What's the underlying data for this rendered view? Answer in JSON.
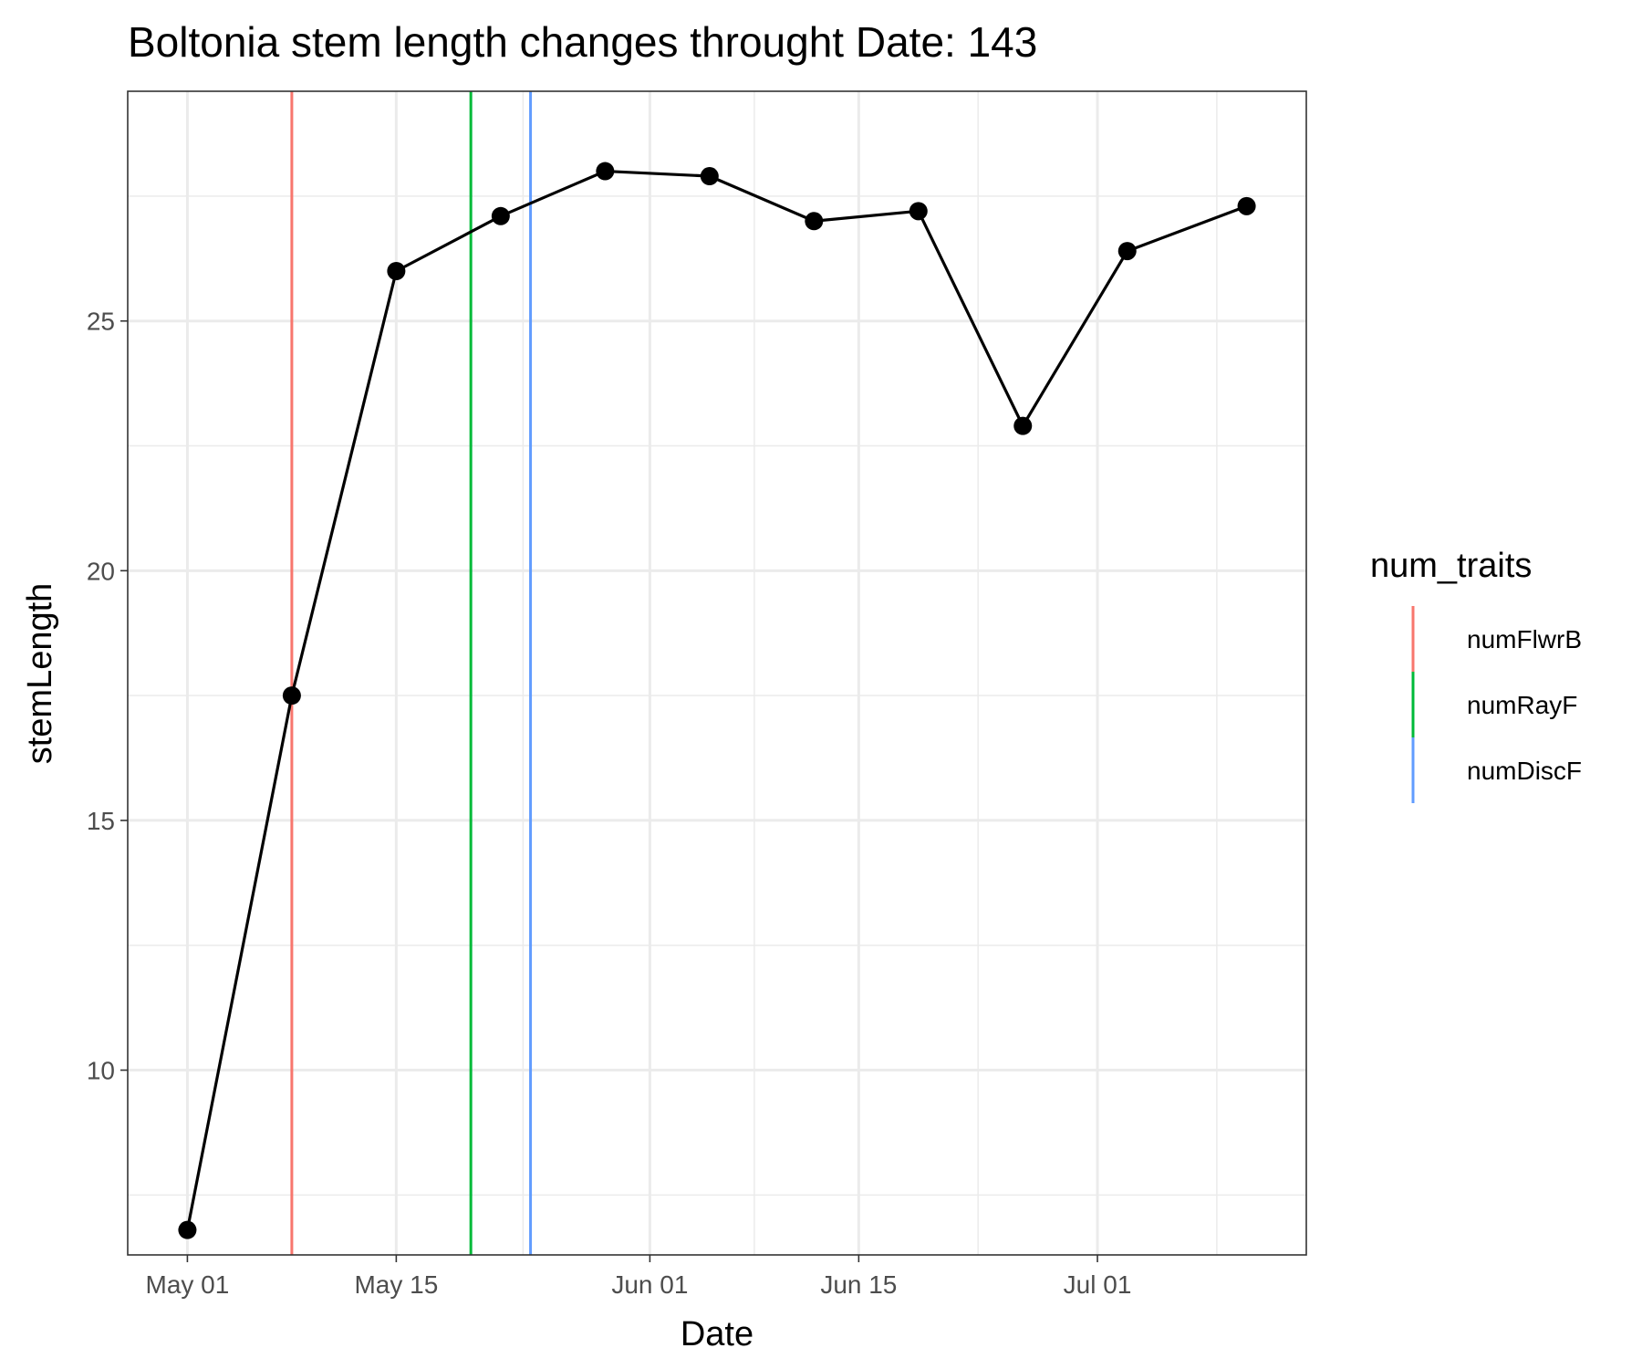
{
  "chart_data": {
    "type": "line",
    "title": "Boltonia stem length changes throught Date:  143",
    "xlabel": "Date",
    "ylabel": "stemLength",
    "x_ticks": [
      "May 01",
      "May 15",
      "Jun 01",
      "Jun 15",
      "Jul 01"
    ],
    "x_tick_dates": [
      "2023-05-01",
      "2023-05-15",
      "2023-06-01",
      "2023-06-15",
      "2023-07-01"
    ],
    "y_ticks": [
      10,
      15,
      20,
      25
    ],
    "xlim": [
      "2022-04-27",
      "2023-07-15"
    ],
    "ylim": [
      6.3,
      29.6
    ],
    "grid": true,
    "series": [
      {
        "x": [
          "2023-05-01",
          "2023-05-08",
          "2023-05-15",
          "2023-05-22",
          "2023-05-29",
          "2023-06-05",
          "2023-06-12",
          "2023-06-19",
          "2023-06-26",
          "2023-07-03",
          "2023-07-11"
        ],
        "y": [
          6.8,
          17.5,
          26.0,
          27.1,
          28.0,
          27.9,
          27.0,
          27.2,
          22.9,
          26.4,
          27.3
        ],
        "color": "#000000"
      }
    ],
    "vlines": [
      {
        "name": "numFlwrB",
        "x": "2023-05-08",
        "color": "#F8766D"
      },
      {
        "name": "numRayF",
        "x": "2023-05-20",
        "color": "#00BA38"
      },
      {
        "name": "numDiscF",
        "x": "2023-05-24",
        "color": "#619CFF"
      }
    ],
    "legend": {
      "title": "num_traits",
      "position": "right",
      "items": [
        {
          "label": "numFlwrB",
          "color": "#F8766D"
        },
        {
          "label": "numRayF",
          "color": "#00BA38"
        },
        {
          "label": "numDiscF",
          "color": "#619CFF"
        }
      ]
    }
  }
}
